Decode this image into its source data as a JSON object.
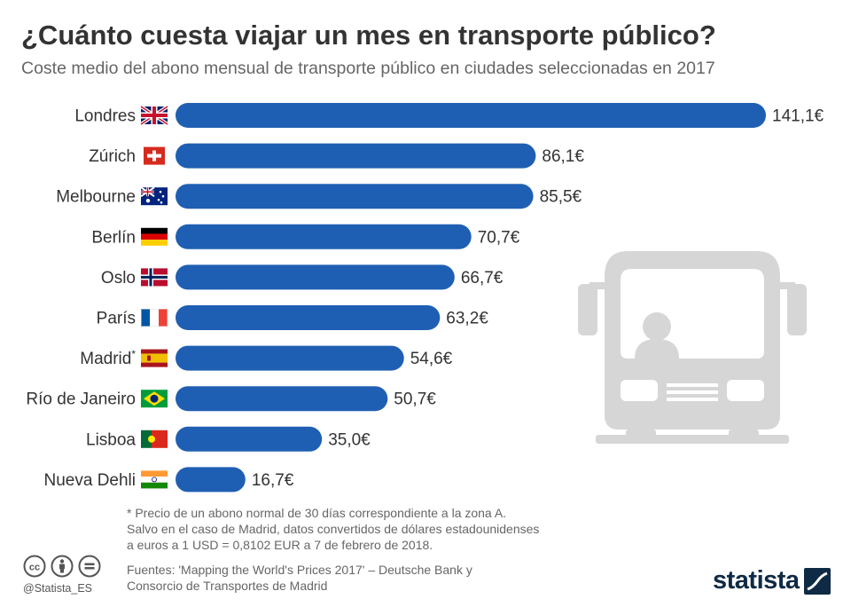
{
  "header": {
    "title": "¿Cuánto cuesta viajar un mes en transporte público?",
    "subtitle": "Coste medio del abono mensual de transporte público en ciudades seleccionadas en 2017"
  },
  "colors": {
    "bar": "#1f5fb3",
    "bus_illustration": "#d6d6d6",
    "title": "#333333",
    "brand": "#0f2a44"
  },
  "chart_data": {
    "type": "bar",
    "orientation": "horizontal",
    "title": "¿Cuánto cuesta viajar un mes en transporte público?",
    "subtitle": "Coste medio del abono mensual de transporte público en ciudades seleccionadas en 2017",
    "xlabel": "",
    "ylabel": "",
    "unit": "€",
    "xlim": [
      0,
      141.1
    ],
    "categories": [
      "Londres",
      "Zúrich",
      "Melbourne",
      "Berlín",
      "Oslo",
      "París",
      "Madrid*",
      "Río de Janeiro",
      "Lisboa",
      "Nueva Dehli"
    ],
    "values": [
      141.1,
      86.1,
      85.5,
      70.7,
      66.7,
      63.2,
      54.6,
      50.7,
      35.0,
      16.7
    ],
    "value_labels": [
      "141,1€",
      "86,1€",
      "85,5€",
      "70,7€",
      "66,7€",
      "63,2€",
      "54,6€",
      "50,7€",
      "35,0€",
      "16,7€"
    ],
    "flags": [
      "uk-flag-icon",
      "switzerland-flag-icon",
      "australia-flag-icon",
      "germany-flag-icon",
      "norway-flag-icon",
      "france-flag-icon",
      "spain-flag-icon",
      "brazil-flag-icon",
      "portugal-flag-icon",
      "india-flag-icon"
    ]
  },
  "footnote": "* Precio de un abono normal de 30 días correspondiente a la zona A.\nSalvo en el caso de Madrid, datos convertidos de dólares estadounidenses\na euros a 1 USD = 0,8102 EUR a 7 de febrero de 2018.",
  "sources": "Fuentes: 'Mapping the World's Prices 2017' – Deutsche Bank y\nConsorcio de Transportes de Madrid",
  "footer": {
    "handle": "@Statista_ES",
    "brand": "statista",
    "license_icons": [
      "creative-commons-icon",
      "attribution-icon",
      "no-derivatives-icon"
    ]
  }
}
